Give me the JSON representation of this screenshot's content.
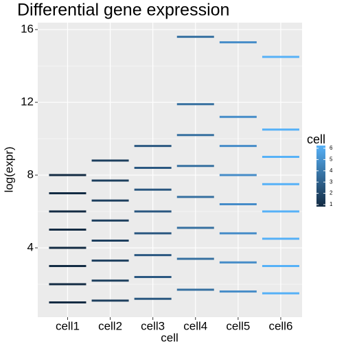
{
  "chart_data": {
    "type": "segment",
    "title": "Differential gene expression",
    "x_label": "cell",
    "y_label": "log(expr)",
    "categories": [
      "cell1",
      "cell2",
      "cell3",
      "cell4",
      "cell5",
      "cell6"
    ],
    "values": [
      [
        1,
        2,
        3,
        4,
        5,
        6,
        7,
        8
      ],
      [
        1.1,
        2.2,
        3.3,
        4.4,
        5.5,
        6.6,
        7.7,
        8.8
      ],
      [
        1.2,
        2.4,
        3.6,
        4.8,
        6.0,
        7.2,
        8.4,
        9.6
      ],
      [
        1.7,
        3.4,
        5.1,
        6.8,
        8.5,
        10.2,
        11.9,
        15.6
      ],
      [
        1.6,
        3.2,
        4.8,
        6.4,
        8.0,
        9.6,
        11.2,
        15.3
      ],
      [
        1.5,
        3.0,
        4.5,
        6.0,
        7.5,
        9.0,
        10.5,
        14.5
      ]
    ],
    "colors": [
      "#132b43",
      "#1d3f5e",
      "#2a5780",
      "#3670a0",
      "#458cc8",
      "#56b1f7"
    ],
    "ylim": [
      0.19,
      16.38
    ],
    "yticks": [
      4,
      8,
      12,
      16
    ],
    "grid": true,
    "legend": {
      "title": "cell",
      "ticks": [
        1,
        2,
        3,
        4,
        5,
        6
      ],
      "low": "#132b43",
      "high": "#56b1f7",
      "position": "right"
    }
  }
}
